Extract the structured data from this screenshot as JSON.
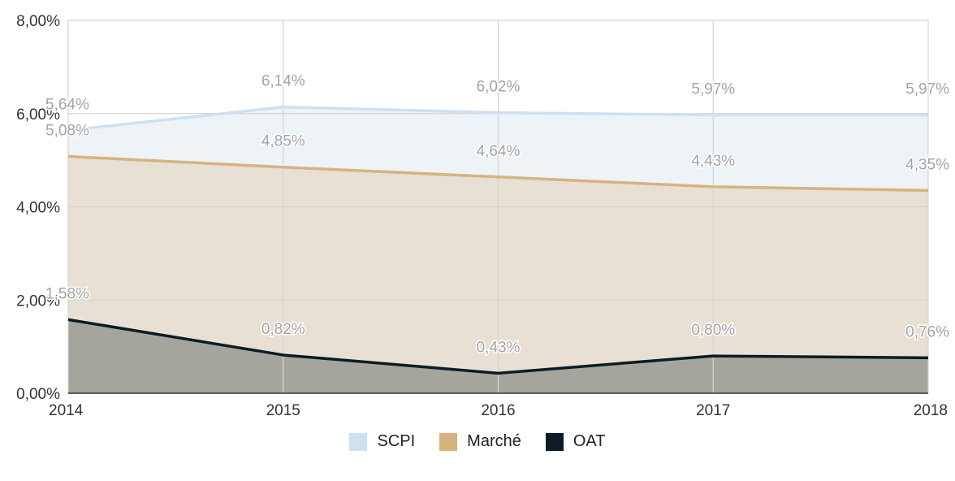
{
  "chart_data": {
    "type": "area",
    "categories": [
      "2014",
      "2015",
      "2016",
      "2017",
      "2018"
    ],
    "series": [
      {
        "name": "SCPI",
        "values": [
          5.64,
          6.14,
          6.02,
          5.97,
          5.97
        ],
        "labels": [
          "5,64%",
          "6,14%",
          "6,02%",
          "5,97%",
          "5,97%"
        ],
        "line_color": "#cfe0f1",
        "fill_color": "#eef3f8"
      },
      {
        "name": "Marché",
        "values": [
          5.08,
          4.85,
          4.64,
          4.43,
          4.35
        ],
        "labels": [
          "5,08%",
          "4,85%",
          "4,64%",
          "4,43%",
          "4,35%"
        ],
        "line_color": "#d6b47e",
        "fill_color": "#e8e0d5"
      },
      {
        "name": "OAT",
        "values": [
          1.58,
          0.82,
          0.43,
          0.8,
          0.76
        ],
        "labels": [
          "1,58%",
          "0,82%",
          "0,43%",
          "0,80%",
          "0,76%"
        ],
        "line_color": "#0b1c26",
        "fill_color": "#a5a59e"
      }
    ],
    "y_ticks": [
      0,
      2,
      4,
      6,
      8
    ],
    "y_tick_labels": [
      "0,00%",
      "2,00%",
      "4,00%",
      "6,00%",
      "8,00%"
    ],
    "ylim": [
      0,
      8
    ],
    "grid": true,
    "legend_position": "bottom",
    "title": "",
    "xlabel": "",
    "ylabel": ""
  }
}
